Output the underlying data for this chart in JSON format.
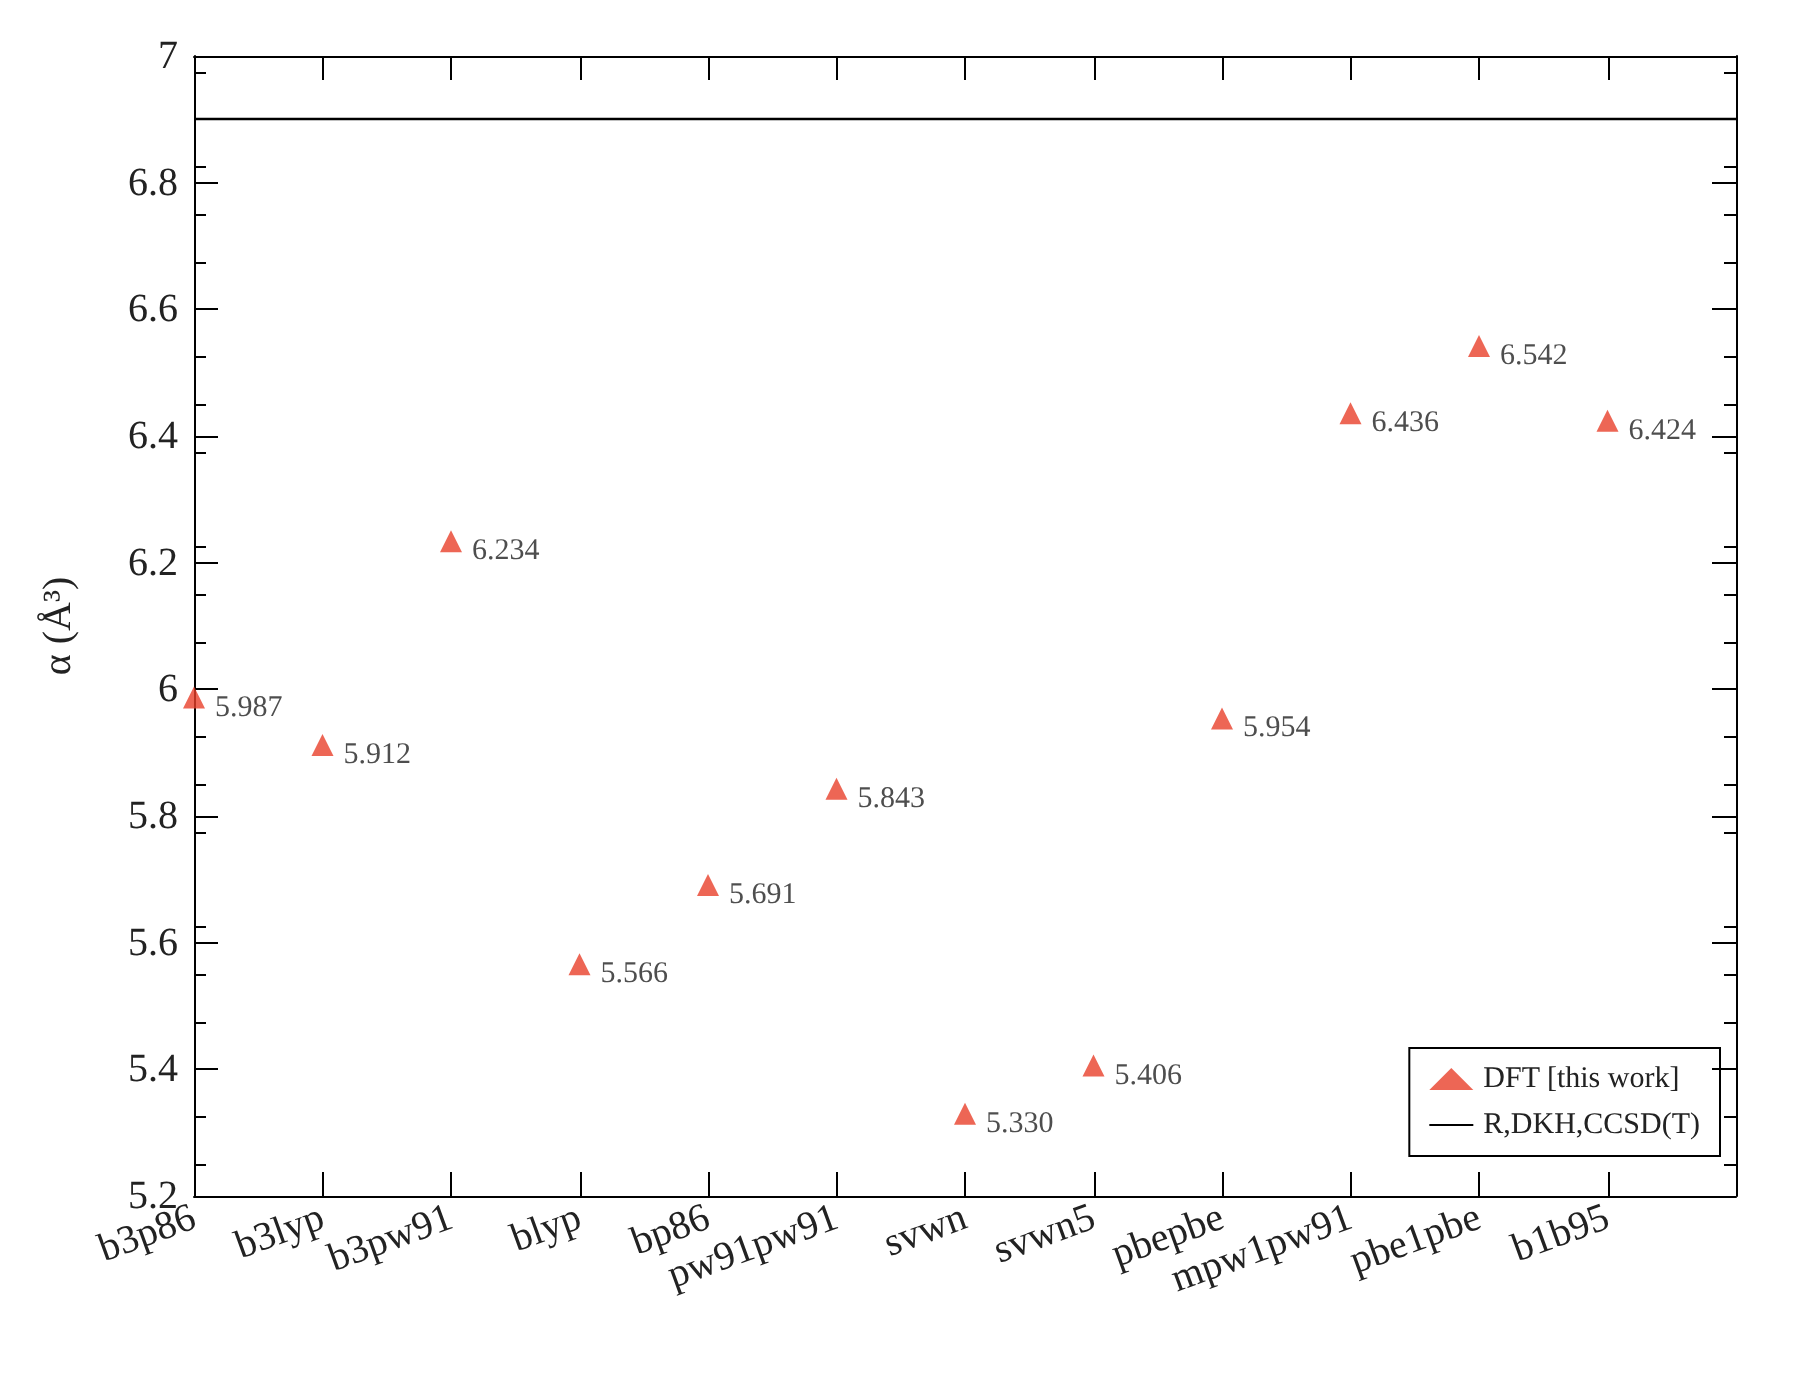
{
  "chart_data": {
    "type": "scatter",
    "ylabel": "α (Å³)",
    "categories": [
      "b3p86",
      "b3lyp",
      "b3pw91",
      "blyp",
      "bp86",
      "pw91pw91",
      "svwn",
      "svwn5",
      "pbepbe",
      "mpw1pw91",
      "pbe1pbe",
      "b1b95"
    ],
    "series": [
      {
        "name": "DFT [this work]",
        "color": "#e8402a",
        "values": [
          5.987,
          5.912,
          6.234,
          5.566,
          5.691,
          5.843,
          5.33,
          5.406,
          5.954,
          6.436,
          6.542,
          6.424
        ],
        "value_labels": [
          "5.987",
          "5.912",
          "6.234",
          "5.566",
          "5.691",
          "5.843",
          "5.330",
          "5.406",
          "5.954",
          "6.436",
          "6.542",
          "6.424"
        ]
      }
    ],
    "ref_lines": [
      {
        "axis": "y",
        "value": 6.9,
        "label": "R,DKH,CCSD(T)",
        "color": "#000000",
        "line_style": "solid"
      }
    ],
    "ylim": [
      5.2,
      7
    ],
    "yticks": [
      5.2,
      5.4,
      5.6,
      5.8,
      6,
      6.2,
      6.4,
      6.6,
      6.8,
      7
    ],
    "marker": "triangle",
    "legend": "bottom right",
    "grid": false
  }
}
